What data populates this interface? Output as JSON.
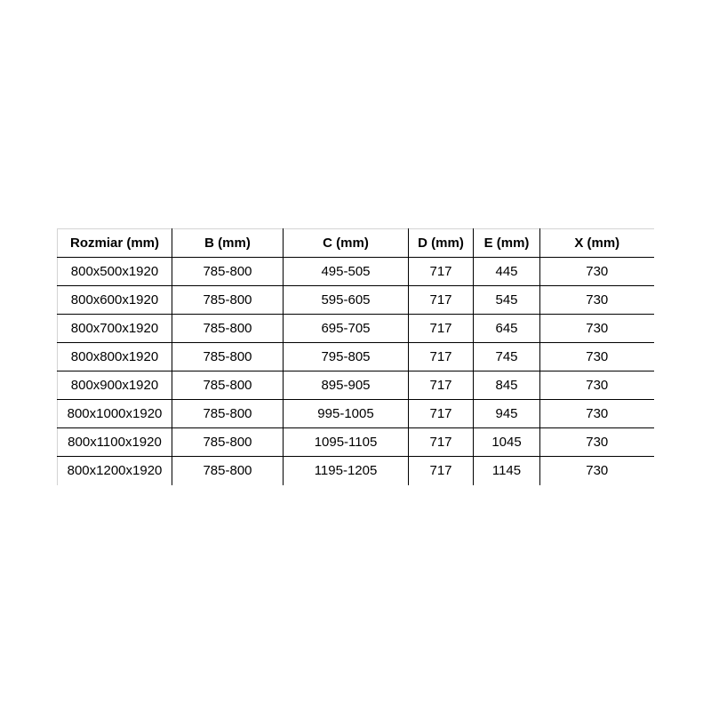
{
  "table": {
    "columns": [
      {
        "label": "Rozmiar (mm)"
      },
      {
        "label": "B (mm)"
      },
      {
        "label": "C (mm)"
      },
      {
        "label": "D (mm)"
      },
      {
        "label": "E (mm)"
      },
      {
        "label": "X (mm)"
      }
    ],
    "rows": [
      [
        "800x500x1920",
        "785-800",
        "495-505",
        "717",
        "445",
        "730"
      ],
      [
        "800x600x1920",
        "785-800",
        "595-605",
        "717",
        "545",
        "730"
      ],
      [
        "800x700x1920",
        "785-800",
        "695-705",
        "717",
        "645",
        "730"
      ],
      [
        "800x800x1920",
        "785-800",
        "795-805",
        "717",
        "745",
        "730"
      ],
      [
        "800x900x1920",
        "785-800",
        "895-905",
        "717",
        "845",
        "730"
      ],
      [
        "800x1000x1920",
        "785-800",
        "995-1005",
        "717",
        "945",
        "730"
      ],
      [
        "800x1100x1920",
        "785-800",
        "1095-1105",
        "717",
        "1045",
        "730"
      ],
      [
        "800x1200x1920",
        "785-800",
        "1195-1205",
        "717",
        "1145",
        "730"
      ]
    ],
    "colors": {
      "border_inner": "#000000",
      "border_outer": "#d3d3d3",
      "text": "#000000",
      "background": "#ffffff"
    }
  }
}
